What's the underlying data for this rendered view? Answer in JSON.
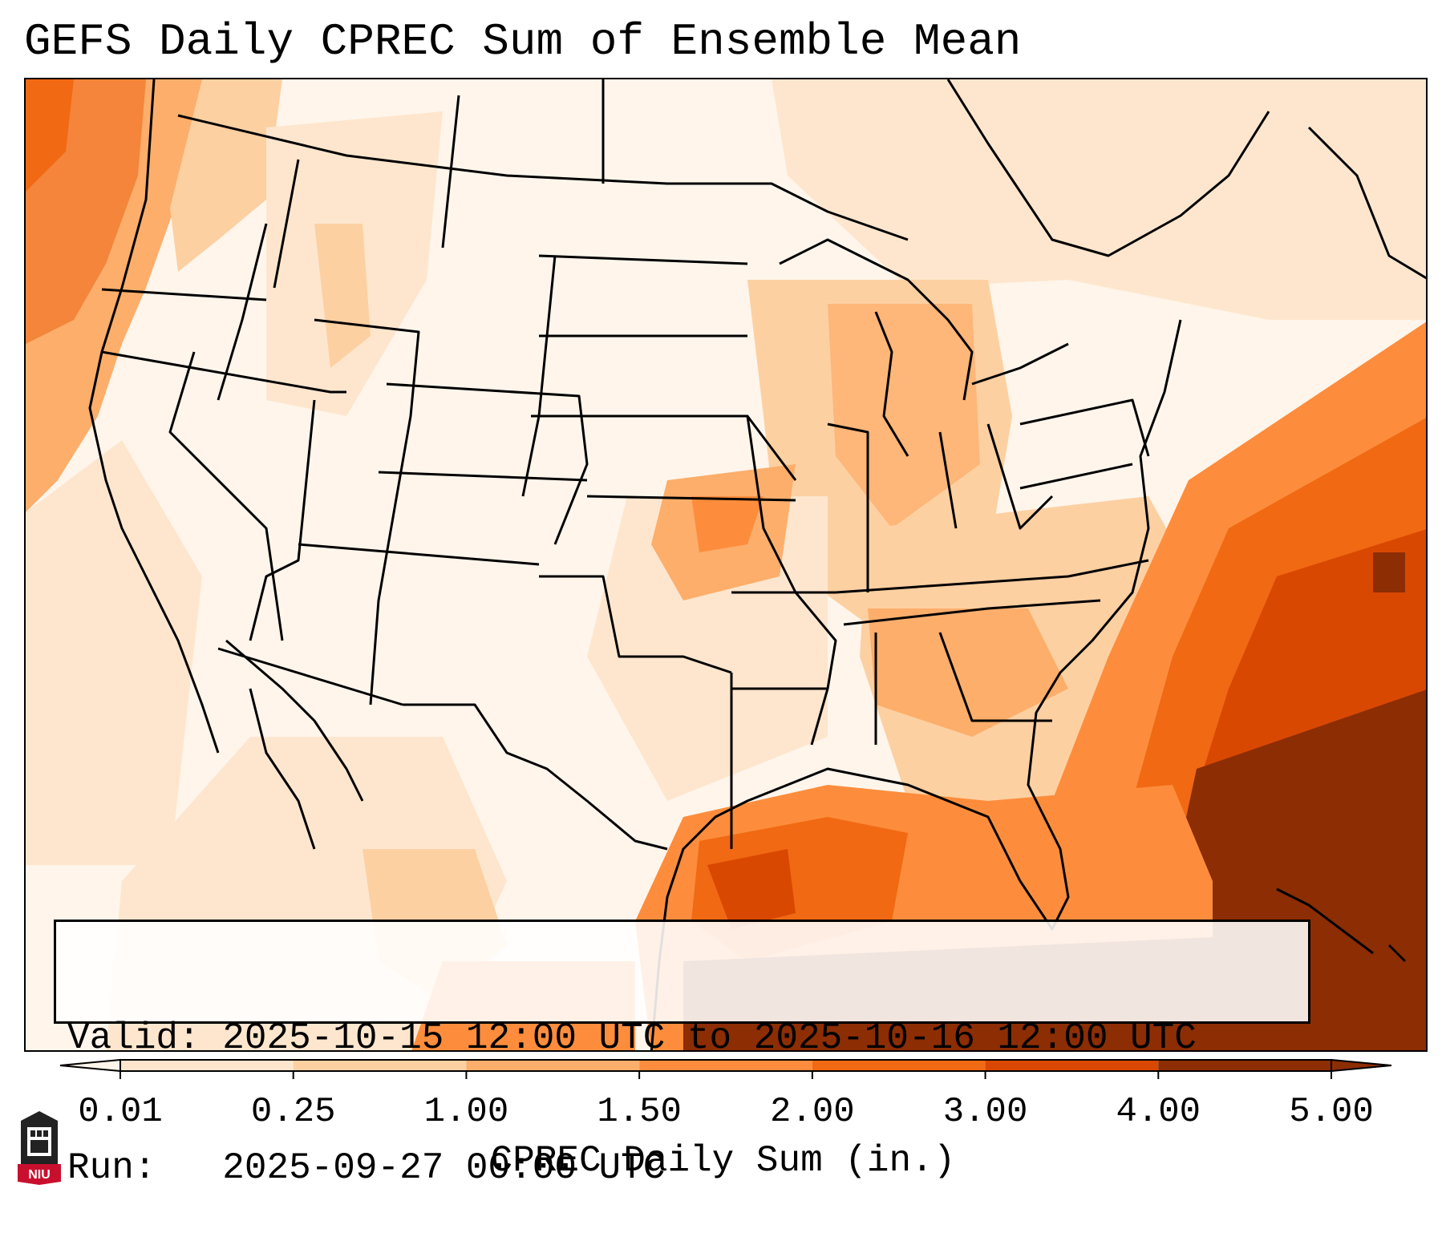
{
  "title": "GEFS Daily CPREC Sum of Ensemble Mean",
  "info": {
    "valid_label": "Valid:",
    "valid_value": "2025-10-15 12:00 UTC to 2025-10-16 12:00 UTC",
    "run_label": "Run:",
    "run_value": "2025-09-27 00:00 UTC"
  },
  "colorbar": {
    "title": "CPREC Daily Sum (in.)",
    "ticks": [
      "0.01",
      "0.25",
      "1.00",
      "1.50",
      "2.00",
      "3.00",
      "4.00",
      "5.00"
    ],
    "colors": [
      "#fff5eb",
      "#fee6ce",
      "#fdd0a2",
      "#fdae6b",
      "#fd8d3c",
      "#f16913",
      "#d94801",
      "#8c2d04"
    ],
    "extend": "both"
  },
  "logo": {
    "text": "NIU",
    "colors": {
      "tower": "#222222",
      "banner": "#c8102e"
    }
  },
  "map": {
    "region": "Continental United States",
    "projection": "Lambert Conformal",
    "highlights": [
      "heaviest totals over the western Atlantic and Gulf of Mexico",
      "moderate totals along the Pacific Northwest coast",
      "light totals across the central and eastern US"
    ]
  }
}
